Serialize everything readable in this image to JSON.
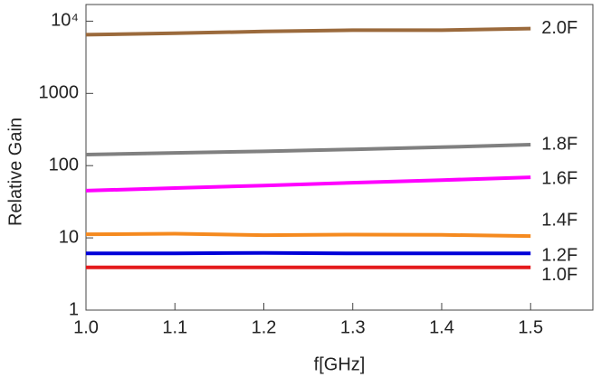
{
  "chart_data": {
    "type": "line",
    "xlabel": "f[GHz]",
    "ylabel": "Relative Gain",
    "x": [
      1.0,
      1.1,
      1.2,
      1.3,
      1.4,
      1.5
    ],
    "series": [
      {
        "name": "1.0F",
        "color": "#e41a1c",
        "values": [
          3.9,
          3.9,
          3.9,
          3.9,
          3.9,
          3.9
        ]
      },
      {
        "name": "1.2F",
        "color": "#0000d8",
        "values": [
          6.1,
          6.1,
          6.2,
          6.1,
          6.1,
          6.1
        ]
      },
      {
        "name": "1.4F",
        "color": "#f58a1f",
        "values": [
          11.2,
          11.4,
          10.9,
          11.1,
          11.0,
          10.6
        ]
      },
      {
        "name": "1.6F",
        "color": "#ff00ff",
        "values": [
          45,
          49,
          53,
          58,
          63,
          69
        ]
      },
      {
        "name": "1.8F",
        "color": "#808080",
        "values": [
          142,
          150,
          158,
          168,
          180,
          195
        ]
      },
      {
        "name": "2.0F",
        "color": "#9b6a3c",
        "values": [
          6500,
          6800,
          7200,
          7500,
          7500,
          7900
        ]
      }
    ],
    "xlim": [
      1.0,
      1.57
    ],
    "xticks": [
      {
        "value": 1.0,
        "label": "1.0"
      },
      {
        "value": 1.1,
        "label": "1.1"
      },
      {
        "value": 1.2,
        "label": "1.2"
      },
      {
        "value": 1.3,
        "label": "1.3"
      },
      {
        "value": 1.4,
        "label": "1.4"
      },
      {
        "value": 1.5,
        "label": "1.5"
      }
    ],
    "ylim": [
      1,
      17000
    ],
    "log_y": true,
    "yticks": [
      1,
      10,
      100,
      1000,
      {
        "value": 10000,
        "label": "10⁴"
      }
    ]
  }
}
